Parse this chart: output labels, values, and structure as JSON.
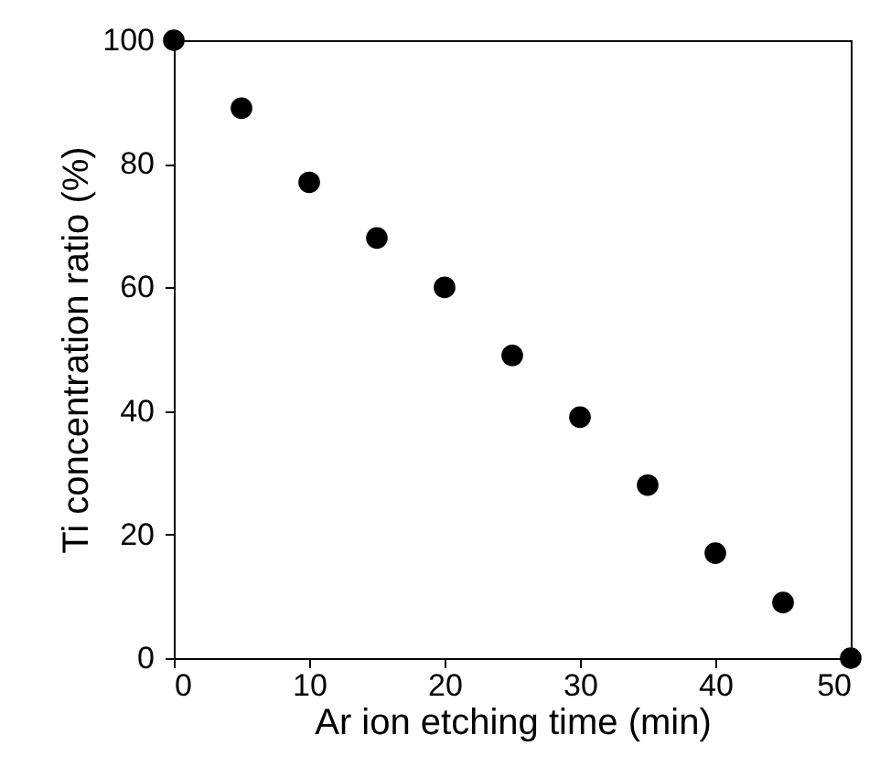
{
  "chart_data": {
    "type": "scatter",
    "xlabel": "Ar ion etching time (min)",
    "ylabel": "Ti concentration ratio (%)",
    "x": [
      0,
      5,
      10,
      15,
      20,
      25,
      30,
      35,
      40,
      45,
      50
    ],
    "series": [
      {
        "color": "#000000",
        "values": [
          100,
          89,
          77,
          68,
          60,
          49,
          39,
          28,
          17,
          9,
          0
        ]
      }
    ],
    "xlim": [
      0,
      50
    ],
    "xticks": [
      0,
      10,
      20,
      30,
      40,
      50
    ],
    "ylim": [
      0,
      100
    ],
    "yticks": [
      0,
      20,
      40,
      60,
      80,
      100
    ],
    "grid": false,
    "legend": false,
    "marker": "circle"
  }
}
